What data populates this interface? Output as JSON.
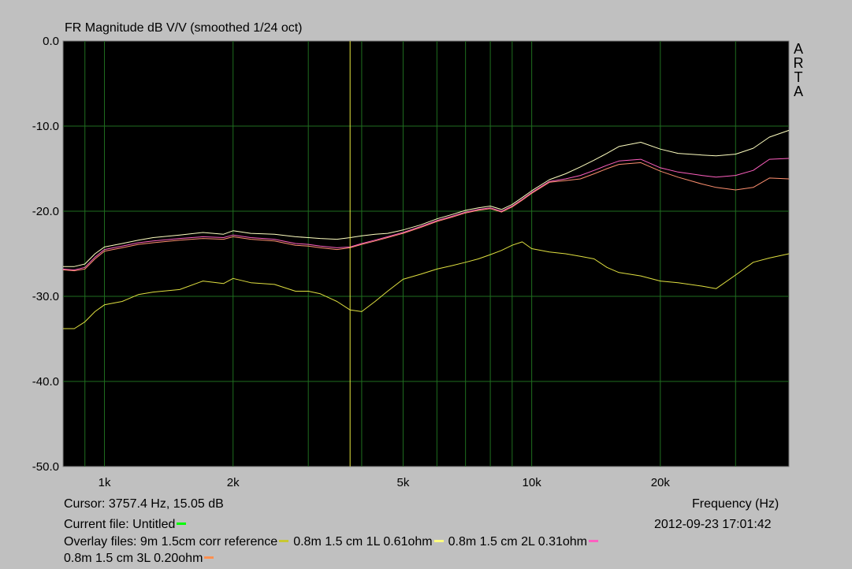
{
  "title": "FR Magnitude dB V/V (smoothed 1/24 oct)",
  "brand": [
    "A",
    "R",
    "T",
    "A"
  ],
  "cursor_readout": "Cursor: 3757.4 Hz, 15.05 dB",
  "frequency_label": "Frequency (Hz)",
  "current_file": "Current file: Untitled",
  "current_file_color": "#00ff00",
  "timestamp": "2012-09-23   17:01:42",
  "overlay_prefix": "Overlay files: ",
  "overlays": [
    {
      "label": "9m 1.5cm corr reference",
      "color": "#c8c832"
    },
    {
      "label": "0.8m 1.5 cm 1L 0.61ohm",
      "color": "#ffff80"
    },
    {
      "label": "0.8m 1.5 cm 2L 0.31ohm",
      "color": "#ff60c0"
    },
    {
      "label": "0.8m 1.5 cm 3L 0.20ohm",
      "color": "#ff9050"
    }
  ],
  "chart_data": {
    "type": "line",
    "title": "FR Magnitude dB V/V (smoothed 1/24 oct)",
    "xlabel": "Frequency (Hz)",
    "ylabel": "",
    "xscale": "log",
    "xlim": [
      800,
      40000
    ],
    "ylim": [
      -50,
      0
    ],
    "yticks": [
      0,
      -10,
      -20,
      -30,
      -40,
      -50
    ],
    "ytick_labels": [
      "0.0",
      "-10.0",
      "-20.0",
      "-30.0",
      "-40.0",
      "-50.0"
    ],
    "xticks": [
      1000,
      2000,
      5000,
      10000,
      20000
    ],
    "xtick_labels": [
      "1k",
      "2k",
      "5k",
      "10k",
      "20k"
    ],
    "grid": true,
    "cursor_x": 3757.4,
    "series": [
      {
        "name": "9m 1.5cm corr reference",
        "color": "#e0e040",
        "x": [
          800,
          850,
          900,
          950,
          1000,
          1100,
          1200,
          1300,
          1500,
          1700,
          1900,
          2000,
          2200,
          2500,
          2800,
          3000,
          3200,
          3500,
          3757,
          4000,
          4300,
          4600,
          5000,
          5500,
          6000,
          6500,
          7000,
          7500,
          8000,
          8500,
          9000,
          9500,
          10000,
          11000,
          12000,
          13000,
          14000,
          15000,
          16000,
          18000,
          20000,
          22000,
          25000,
          27000,
          30000,
          33000,
          36000,
          40000
        ],
        "y": [
          -33.8,
          -33.8,
          -33.0,
          -31.8,
          -31.0,
          -30.6,
          -29.8,
          -29.5,
          -29.2,
          -28.2,
          -28.5,
          -27.9,
          -28.4,
          -28.6,
          -29.4,
          -29.4,
          -29.7,
          -30.6,
          -31.6,
          -31.8,
          -30.6,
          -29.4,
          -28.0,
          -27.4,
          -26.8,
          -26.4,
          -26.0,
          -25.6,
          -25.1,
          -24.6,
          -24.0,
          -23.6,
          -24.4,
          -24.8,
          -25.0,
          -25.3,
          -25.6,
          -26.6,
          -27.2,
          -27.6,
          -28.2,
          -28.4,
          -28.8,
          -29.1,
          -27.5,
          -26.0,
          -25.5,
          -25.0
        ]
      },
      {
        "name": "0.8m 1.5 cm 1L 0.61ohm",
        "color": "#ffffc0",
        "x": [
          800,
          850,
          900,
          950,
          1000,
          1100,
          1200,
          1300,
          1500,
          1700,
          1900,
          2000,
          2200,
          2500,
          2800,
          3000,
          3200,
          3500,
          3757,
          4000,
          4300,
          4600,
          5000,
          5500,
          6000,
          6500,
          7000,
          7500,
          8000,
          8500,
          9000,
          9500,
          10000,
          11000,
          12000,
          13000,
          14000,
          15000,
          16000,
          18000,
          20000,
          22000,
          25000,
          27000,
          30000,
          33000,
          36000,
          40000
        ],
        "y": [
          -26.5,
          -26.5,
          -26.2,
          -25.0,
          -24.2,
          -23.8,
          -23.4,
          -23.1,
          -22.8,
          -22.5,
          -22.7,
          -22.3,
          -22.6,
          -22.7,
          -23.0,
          -23.1,
          -23.2,
          -23.3,
          -23.1,
          -22.9,
          -22.7,
          -22.6,
          -22.2,
          -21.6,
          -20.9,
          -20.4,
          -19.9,
          -19.6,
          -19.4,
          -19.8,
          -19.2,
          -18.4,
          -17.6,
          -16.3,
          -15.6,
          -14.8,
          -14.0,
          -13.2,
          -12.4,
          -11.9,
          -12.7,
          -13.2,
          -13.4,
          -13.5,
          -13.3,
          -12.6,
          -11.3,
          -10.5
        ]
      },
      {
        "name": "0.8m 1.5 cm 2L 0.31ohm",
        "color": "#ff60c0",
        "x": [
          800,
          850,
          900,
          950,
          1000,
          1100,
          1200,
          1300,
          1500,
          1700,
          1900,
          2000,
          2200,
          2500,
          2800,
          3000,
          3200,
          3500,
          3757,
          4000,
          4300,
          4600,
          5000,
          5500,
          6000,
          6500,
          7000,
          7500,
          8000,
          8500,
          9000,
          9500,
          10000,
          11000,
          12000,
          13000,
          14000,
          15000,
          16000,
          18000,
          20000,
          22000,
          25000,
          27000,
          30000,
          33000,
          36000,
          40000
        ],
        "y": [
          -26.8,
          -26.9,
          -26.6,
          -25.4,
          -24.5,
          -24.1,
          -23.7,
          -23.5,
          -23.2,
          -23.0,
          -23.1,
          -22.8,
          -23.1,
          -23.3,
          -23.8,
          -23.9,
          -24.1,
          -24.3,
          -24.2,
          -23.8,
          -23.4,
          -23.0,
          -22.5,
          -21.8,
          -21.1,
          -20.6,
          -20.1,
          -19.8,
          -19.6,
          -20.0,
          -19.4,
          -18.6,
          -17.8,
          -16.5,
          -16.2,
          -15.8,
          -15.2,
          -14.6,
          -14.1,
          -13.9,
          -14.9,
          -15.4,
          -15.8,
          -16.0,
          -15.8,
          -15.2,
          -13.9,
          -13.8
        ]
      },
      {
        "name": "0.8m 1.5 cm 3L 0.20ohm",
        "color": "#ff9070",
        "x": [
          800,
          850,
          900,
          950,
          1000,
          1100,
          1200,
          1300,
          1500,
          1700,
          1900,
          2000,
          2200,
          2500,
          2800,
          3000,
          3200,
          3500,
          3757,
          4000,
          4300,
          4600,
          5000,
          5500,
          6000,
          6500,
          7000,
          7500,
          8000,
          8500,
          9000,
          9500,
          10000,
          11000,
          12000,
          13000,
          14000,
          15000,
          16000,
          18000,
          20000,
          22000,
          25000,
          27000,
          30000,
          33000,
          36000,
          40000
        ],
        "y": [
          -26.9,
          -27.0,
          -26.8,
          -25.6,
          -24.7,
          -24.3,
          -23.9,
          -23.7,
          -23.4,
          -23.2,
          -23.3,
          -23.0,
          -23.3,
          -23.5,
          -24.0,
          -24.1,
          -24.3,
          -24.5,
          -24.3,
          -23.9,
          -23.5,
          -23.1,
          -22.6,
          -21.9,
          -21.2,
          -20.7,
          -20.2,
          -19.9,
          -19.7,
          -20.1,
          -19.5,
          -18.7,
          -17.9,
          -16.6,
          -16.4,
          -16.2,
          -15.6,
          -15.0,
          -14.5,
          -14.3,
          -15.3,
          -16.0,
          -16.8,
          -17.2,
          -17.5,
          -17.2,
          -16.1,
          -16.2
        ]
      }
    ]
  }
}
